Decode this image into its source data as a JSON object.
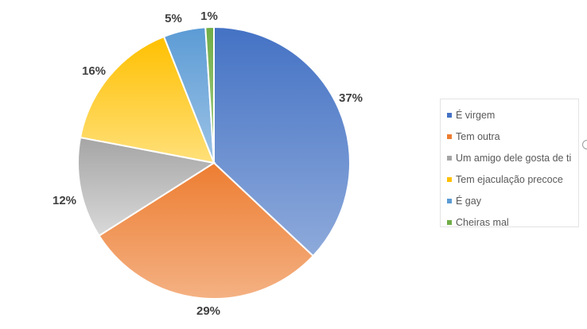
{
  "chart_data": {
    "type": "pie",
    "title": "",
    "categories": [
      "É virgem",
      "Tem outra",
      "Um amigo dele gosta de ti",
      "Tem ejaculação precoce",
      "É gay",
      "Cheiras mal"
    ],
    "values": [
      37,
      29,
      12,
      16,
      5,
      1
    ],
    "value_labels": [
      "37%",
      "29%",
      "12%",
      "16%",
      "5%",
      "1%"
    ],
    "colors": [
      [
        "#4472c4",
        "#8eaadb"
      ],
      [
        "#ed7d31",
        "#f4b183"
      ],
      [
        "#a5a5a5",
        "#d9d9d9"
      ],
      [
        "#ffc000",
        "#ffe07a"
      ],
      [
        "#5b9bd5",
        "#9dc3e6"
      ],
      [
        "#70ad47",
        "#a9d18e"
      ]
    ],
    "legend_position": "right"
  }
}
